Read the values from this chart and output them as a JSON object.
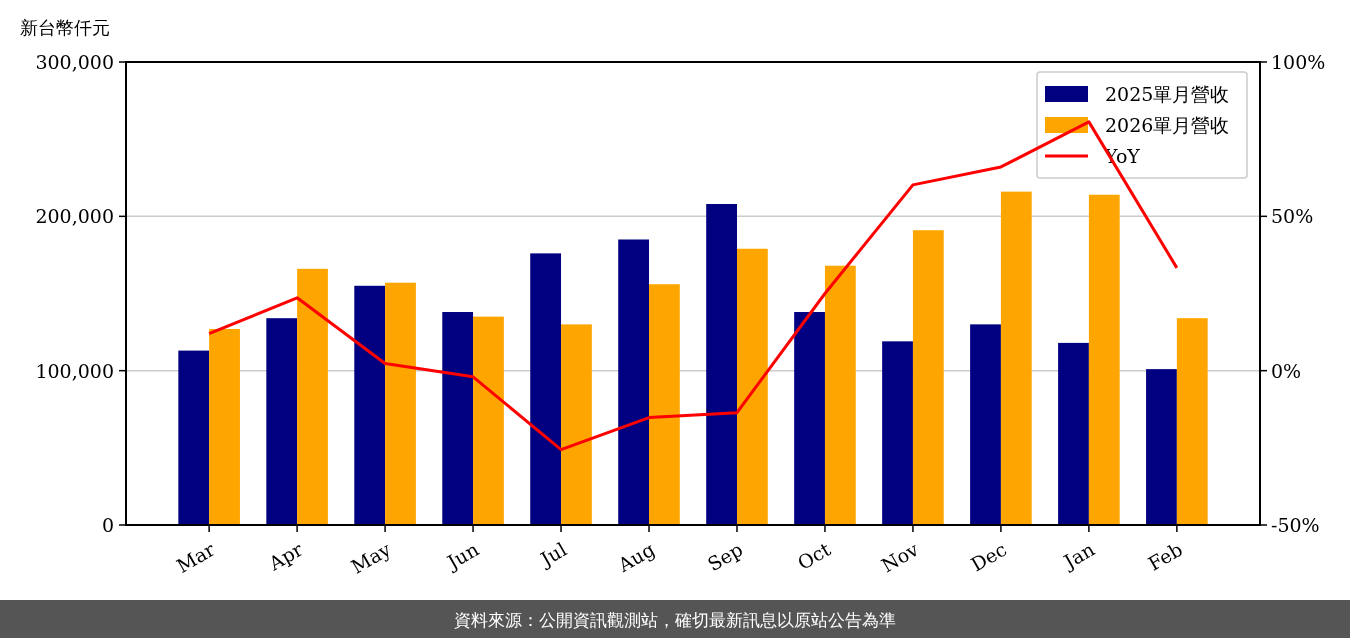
{
  "chart_data": {
    "type": "bar",
    "ylabel": "新台幣仟元",
    "categories": [
      "Mar",
      "Apr",
      "May",
      "Jun",
      "Jul",
      "Aug",
      "Sep",
      "Oct",
      "Nov",
      "Dec",
      "Jan",
      "Feb"
    ],
    "series": [
      {
        "name": "2025單月營收",
        "color": "#000080",
        "values": [
          113000,
          134000,
          155000,
          138000,
          176000,
          185000,
          208000,
          138000,
          119000,
          130000,
          118000,
          101000
        ]
      },
      {
        "name": "2026單月營收",
        "color": "#ffa500",
        "values": [
          127000,
          166000,
          157000,
          135000,
          130000,
          156000,
          179000,
          168000,
          191000,
          216000,
          214000,
          134000
        ]
      },
      {
        "name": "YoY",
        "type": "line",
        "axis": "y2",
        "color": "#ff0000",
        "values": [
          12,
          23.6,
          2.3,
          -2,
          -25.6,
          -15.2,
          -13.6,
          25,
          60.2,
          66,
          80.6,
          33.3
        ]
      }
    ],
    "ylim": [
      0,
      300000
    ],
    "yticks": [
      {
        "value": 0,
        "label": "0"
      },
      {
        "value": 100000,
        "label": "100,000"
      },
      {
        "value": 200000,
        "label": "200,000"
      },
      {
        "value": 300000,
        "label": "300,000"
      }
    ],
    "y2lim": [
      -50,
      100
    ],
    "y2ticks": [
      {
        "value": -50,
        "label": "-50%"
      },
      {
        "value": 0,
        "label": "0%"
      },
      {
        "value": 50,
        "label": "50%"
      },
      {
        "value": 100,
        "label": "100%"
      }
    ],
    "grid": "y",
    "legend": "top right",
    "annotations": [
      "資料來源：公開資訊觀測站，確切最新訊息以原站公告為準"
    ]
  }
}
